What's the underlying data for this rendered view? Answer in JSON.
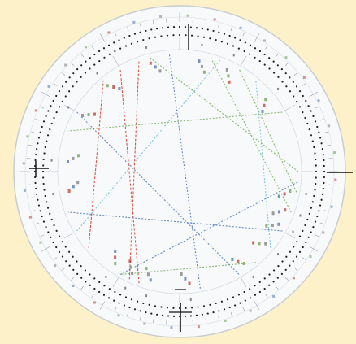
{
  "colors": {
    "background": "#fcf1c8",
    "disc": "#f7f9fb",
    "rim": "#c9cdd3",
    "ring_dots": "#222222",
    "axis": "#111111",
    "aspect_red": "#d23a2e",
    "aspect_blue": "#4f78b8",
    "aspect_green": "#78b05a",
    "aspect_cyan": "#6cc1d6",
    "glyph_green": "#6a9e52",
    "glyph_red": "#c0392b",
    "glyph_blue": "#4a72b0"
  },
  "chart_data": {
    "type": "diagram",
    "description_hint": "",
    "rings": 3,
    "house_cusps_deg": [
      0,
      30,
      60,
      90,
      120,
      150,
      180,
      210,
      240,
      270,
      300,
      330
    ],
    "axis_angles_deg": [
      0,
      90,
      180,
      270
    ],
    "aspect_lines": [
      {
        "a1": 200,
        "a2": 330,
        "color": "red"
      },
      {
        "a1": 205,
        "a2": 340,
        "color": "red"
      },
      {
        "a1": 210,
        "a2": 95,
        "color": "blue"
      },
      {
        "a1": 120,
        "a2": 250,
        "color": "blue"
      },
      {
        "a1": 110,
        "a2": 15,
        "color": "green"
      },
      {
        "a1": 60,
        "a2": 290,
        "color": "green"
      },
      {
        "a1": 130,
        "a2": 40,
        "color": "cyan"
      },
      {
        "a1": 140,
        "a2": 210,
        "color": "green"
      },
      {
        "a1": 150,
        "a2": 300,
        "color": "blue"
      },
      {
        "a1": 230,
        "a2": 320,
        "color": "red"
      },
      {
        "a1": 100,
        "a2": 30,
        "color": "green"
      },
      {
        "a1": 240,
        "a2": 20,
        "color": "cyan"
      },
      {
        "a1": 170,
        "a2": 355,
        "color": "blue"
      },
      {
        "a1": 90,
        "a2": 345,
        "color": "green"
      }
    ],
    "planet_clusters_deg": [
      100,
      110,
      118,
      130,
      145,
      175,
      195,
      205,
      215,
      260,
      275,
      300,
      320,
      345,
      10,
      25,
      50
    ]
  }
}
